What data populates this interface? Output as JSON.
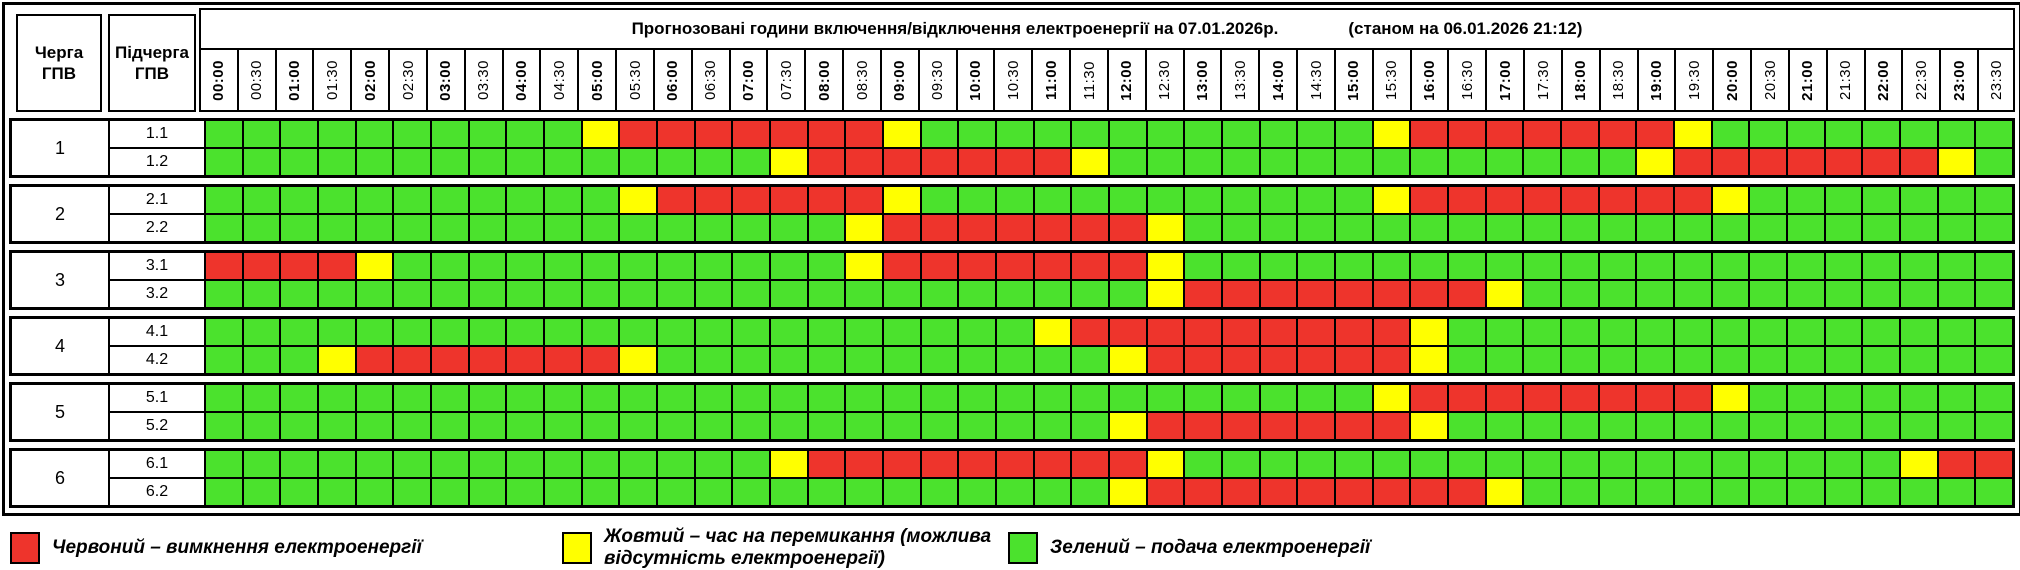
{
  "title": "Прогнозовані години включення/відключення електроенергії на 07.01.2026р.",
  "status_note": "(станом на 06.01.2026 21:12)",
  "columns": {
    "queue_header": "Черга ГПВ",
    "subqueue_header": "Підчерга ГПВ"
  },
  "chart_data": {
    "type": "heatmap",
    "x_labels": [
      "00:00",
      "00:30",
      "01:00",
      "01:30",
      "02:00",
      "02:30",
      "03:00",
      "03:30",
      "04:00",
      "04:30",
      "05:00",
      "05:30",
      "06:00",
      "06:30",
      "07:00",
      "07:30",
      "08:00",
      "08:30",
      "09:00",
      "09:30",
      "10:00",
      "10:30",
      "11:00",
      "11:30",
      "12:00",
      "12:30",
      "13:00",
      "13:30",
      "14:00",
      "14:30",
      "15:00",
      "15:30",
      "16:00",
      "16:30",
      "17:00",
      "17:30",
      "18:00",
      "18:30",
      "19:00",
      "19:30",
      "20:00",
      "20:30",
      "21:00",
      "21:30",
      "22:00",
      "22:30",
      "23:00",
      "23:30"
    ],
    "cell_states": {
      "G": "подача електроенергії",
      "Y": "час на перемикання (можлива відсутність електроенергії)",
      "R": "вимкнення електроенергії"
    },
    "colors": {
      "G": "#4be22d",
      "Y": "#ffff00",
      "R": "#ee342c"
    },
    "groups": [
      {
        "queue": "1",
        "rows": [
          {
            "label": "1.1",
            "cells": "GGGGGGGGGGYRRRRRRRYGGGGGGGGGGGGYRRRRRRRYGGGGGGGG"
          },
          {
            "label": "1.2",
            "cells": "GGGGGGGGGGGGGGGYRRRRRRRYGGGGGGGGGGGGGGYRRRRRRRYG"
          }
        ]
      },
      {
        "queue": "2",
        "rows": [
          {
            "label": "2.1",
            "cells": "GGGGGGGGGGGYRRRRRRYGGGGGGGGGGGGYRRRRRRRRYGGGGGGG"
          },
          {
            "label": "2.2",
            "cells": "GGGGGGGGGGGGGGGGGYRRRRRRRYGGGGGGGGGGGGGGGGGGGGGG"
          }
        ]
      },
      {
        "queue": "3",
        "rows": [
          {
            "label": "3.1",
            "cells": "RRRRYGGGGGGGGGGGGYRRRRRRRYGGGGGGGGGGGGGGGGGGGGGG"
          },
          {
            "label": "3.2",
            "cells": "GGGGGGGGGGGGGGGGGGGGGGGGGYRRRRRRRRYGGGGGGGGGGGGG"
          }
        ]
      },
      {
        "queue": "4",
        "rows": [
          {
            "label": "4.1",
            "cells": "GGGGGGGGGGGGGGGGGGGGGGYRRRRRRRRRYGGGGGGGGGGGGGGG"
          },
          {
            "label": "4.2",
            "cells": "GGGYRRRRRRRYGGGGGGGGGGGGYRRRRRRRYGGGGGGGGGGGGGGG"
          }
        ]
      },
      {
        "queue": "5",
        "rows": [
          {
            "label": "5.1",
            "cells": "GGGGGGGGGGGGGGGGGGGGGGGGGGGGGGGYRRRRRRRRYGGGGGGG"
          },
          {
            "label": "5.2",
            "cells": "GGGGGGGGGGGGGGGGGGGGGGGGYRRRRRRRYGGGGGGGGGGGGGGG"
          }
        ]
      },
      {
        "queue": "6",
        "rows": [
          {
            "label": "6.1",
            "cells": "GGGGGGGGGGGGGGGYRRRRRRRRRYGGGGGGGGGGGGGGGGGGGYRR"
          },
          {
            "label": "6.2",
            "cells": "GGGGGGGGGGGGGGGGGGGGGGGGYRRRRRRRRRYGGGGGGGGGGGGG"
          }
        ]
      }
    ]
  },
  "legend": {
    "items": [
      {
        "color_key": "R",
        "label": "Червоний – вимкнення електроенергії"
      },
      {
        "color_key": "Y",
        "label": "Жовтий – час на перемикання (можлива відсутність електроенергії)"
      },
      {
        "color_key": "G",
        "label": "Зелений – подача електроенергії"
      }
    ]
  }
}
